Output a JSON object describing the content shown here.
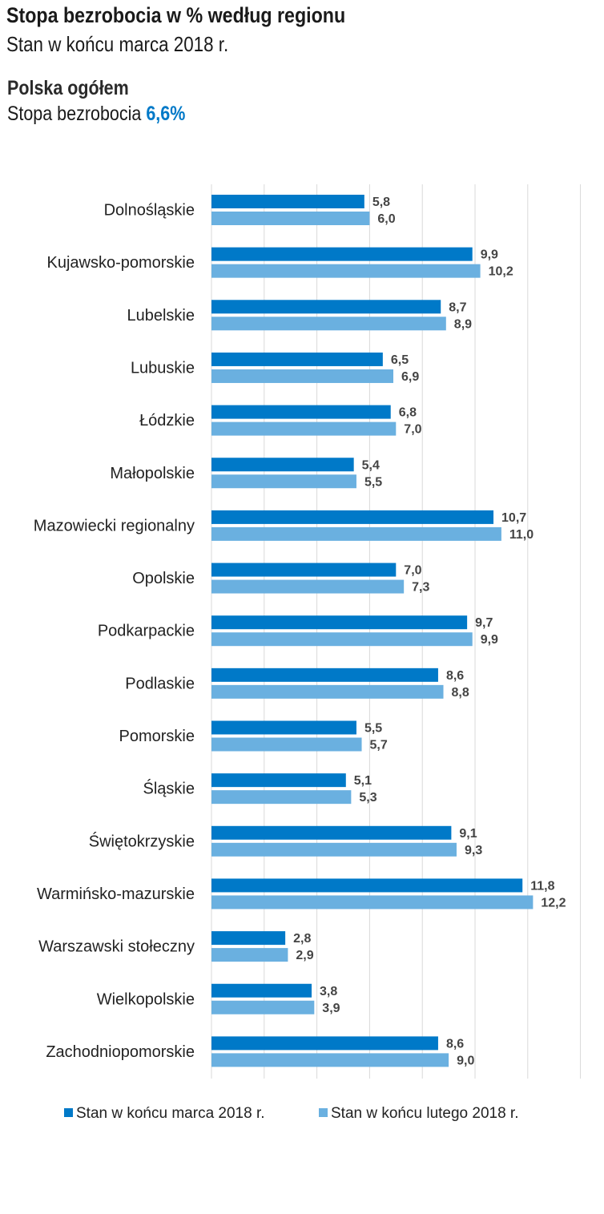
{
  "header": {
    "title": "Stopa bezrobocia w % według regionu",
    "subtitle": "Stan w końcu marca 2018 r.",
    "poland_label": "Polska ogółem",
    "poland_rate_label": "Stopa bezrobocia",
    "poland_rate_value": "6,6%"
  },
  "chart_data": {
    "type": "bar",
    "orientation": "horizontal",
    "categories": [
      "Dolnośląskie",
      "Kujawsko-pomorskie",
      "Lubelskie",
      "Lubuskie",
      "Łódzkie",
      "Małopolskie",
      "Mazowiecki regionalny",
      "Opolskie",
      "Podkarpackie",
      "Podlaskie",
      "Pomorskie",
      "Śląskie",
      "Świętokrzyskie",
      "Warmińsko-mazurskie",
      "Warszawski stołeczny",
      "Wielkopolskie",
      "Zachodniopomorskie"
    ],
    "series": [
      {
        "name": "Stan w końcu marca 2018 r.",
        "color": "#0079c8",
        "values": [
          5.8,
          9.9,
          8.7,
          6.5,
          6.8,
          5.4,
          10.7,
          7.0,
          9.7,
          8.6,
          5.5,
          5.1,
          9.1,
          11.8,
          2.8,
          3.8,
          8.6
        ]
      },
      {
        "name": "Stan w końcu lutego 2018 r.",
        "color": "#6ab0e0",
        "values": [
          6.0,
          10.2,
          8.9,
          6.9,
          7.0,
          5.5,
          11.0,
          7.3,
          9.9,
          8.8,
          5.7,
          5.3,
          9.3,
          12.2,
          2.9,
          3.9,
          9.0
        ]
      }
    ],
    "xlim": [
      0,
      14
    ],
    "grid": true,
    "grid_step": 2,
    "legend": "bottom",
    "decimal_separator": ","
  }
}
